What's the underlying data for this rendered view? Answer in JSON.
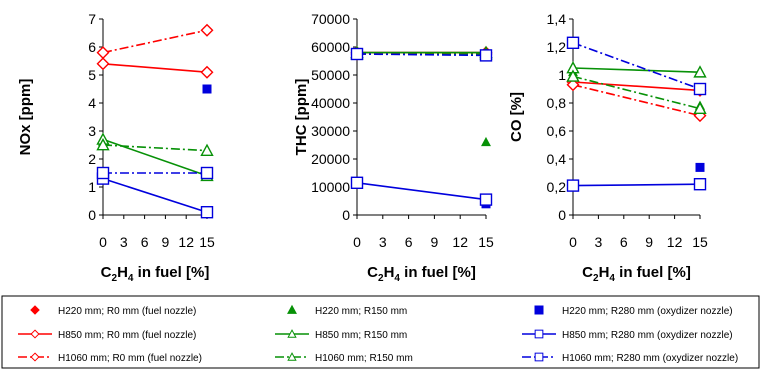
{
  "colors": {
    "red": "#ff0000",
    "green": "#079107",
    "blue": "#0000dd"
  },
  "chart_data": [
    {
      "type": "scatter",
      "title": "",
      "xlabel": {
        "pre": "C",
        "sub1": "2",
        "mid": "H",
        "sub2": "4",
        "post": " in fuel [%]"
      },
      "ylabel": "NOx [ppm]",
      "xlim": [
        0,
        15
      ],
      "ylim": [
        0,
        7
      ],
      "xticks": [
        "0",
        "3",
        "6",
        "9",
        "12",
        "15"
      ],
      "yticks": [
        "0",
        "1",
        "2",
        "3",
        "4",
        "5",
        "6",
        "7"
      ],
      "series": [
        {
          "name": "H220 mm; R0 mm (fuel nozzle)",
          "x": [
            0,
            15
          ],
          "y": [
            5.8,
            5.1
          ]
        },
        {
          "name": "H220 mm; R150 mm",
          "x": [
            0,
            15
          ],
          "y": [
            2.6,
            1.4
          ]
        },
        {
          "name": "H220 mm; R280 mm (oxydizer nozzle)",
          "x": [
            0,
            15
          ],
          "y": [
            1.5,
            4.5
          ]
        },
        {
          "name": "H850 mm; R0 mm (fuel nozzle)",
          "x": [
            0,
            15
          ],
          "y": [
            5.4,
            5.1
          ]
        },
        {
          "name": "H850 mm; R150 mm",
          "x": [
            0,
            15
          ],
          "y": [
            2.7,
            1.4
          ]
        },
        {
          "name": "H850 mm; R280 mm (oxydizer nozzle)",
          "x": [
            0,
            15
          ],
          "y": [
            1.3,
            0.1
          ]
        },
        {
          "name": "H1060 mm; R0 mm (fuel nozzle)",
          "x": [
            0,
            15
          ],
          "y": [
            5.8,
            6.6
          ]
        },
        {
          "name": "H1060 mm; R150 mm",
          "x": [
            0,
            15
          ],
          "y": [
            2.5,
            2.3
          ]
        },
        {
          "name": "H1060 mm; R280 mm (oxydizer nozzle)",
          "x": [
            0,
            15
          ],
          "y": [
            1.5,
            1.5
          ]
        }
      ]
    },
    {
      "type": "scatter",
      "title": "",
      "xlabel": {
        "pre": "C",
        "sub1": "2",
        "mid": "H",
        "sub2": "4",
        "post": " in fuel [%]"
      },
      "ylabel": "THC [ppm]",
      "xlim": [
        0,
        15
      ],
      "ylim": [
        0,
        70000
      ],
      "xticks": [
        "0",
        "3",
        "6",
        "9",
        "12",
        "15"
      ],
      "yticks": [
        "0",
        "10000",
        "20000",
        "30000",
        "40000",
        "50000",
        "60000",
        "70000"
      ],
      "series": [
        {
          "name": "H220 mm; R0 mm (fuel nozzle)",
          "x": [
            0,
            15
          ],
          "y": [
            57500,
            57500
          ]
        },
        {
          "name": "H220 mm; R150 mm",
          "x": [
            0,
            15
          ],
          "y": [
            57000,
            26000
          ]
        },
        {
          "name": "H220 mm; R280 mm (oxydizer nozzle)",
          "x": [
            0,
            15
          ],
          "y": [
            57500,
            4000
          ]
        },
        {
          "name": "H850 mm; R0 mm (fuel nozzle)",
          "x": [
            0,
            15
          ],
          "y": [
            58000,
            58000
          ]
        },
        {
          "name": "H850 mm; R150 mm",
          "x": [
            0,
            15
          ],
          "y": [
            58000,
            58000
          ]
        },
        {
          "name": "H850 mm; R280 mm (oxydizer nozzle)",
          "x": [
            0,
            15
          ],
          "y": [
            11500,
            5500
          ]
        },
        {
          "name": "H1060 mm; R0 mm (fuel nozzle)",
          "x": [
            0,
            15
          ],
          "y": [
            57500,
            57500
          ]
        },
        {
          "name": "H1060 mm; R150 mm",
          "x": [
            0,
            15
          ],
          "y": [
            57500,
            57500
          ]
        },
        {
          "name": "H1060 mm; R280 mm (oxydizer nozzle)",
          "x": [
            0,
            15
          ],
          "y": [
            57500,
            57000
          ]
        }
      ]
    },
    {
      "type": "scatter",
      "title": "",
      "xlabel": {
        "pre": "C",
        "sub1": "2",
        "mid": "H",
        "sub2": "4",
        "post": " in fuel [%]"
      },
      "ylabel": "CO [%]",
      "xlim": [
        0,
        15
      ],
      "ylim": [
        0,
        1.4
      ],
      "xticks": [
        "0",
        "3",
        "6",
        "9",
        "12",
        "15"
      ],
      "yticks": [
        "0",
        "0,2",
        "0,4",
        "0,6",
        "0,8",
        "1",
        "1,2",
        "1,4"
      ],
      "series": [
        {
          "name": "H220 mm; R0 mm (fuel nozzle)",
          "x": [
            0,
            15
          ],
          "y": [
            0.93,
            0.75
          ]
        },
        {
          "name": "H220 mm; R150 mm",
          "x": [
            0,
            15
          ],
          "y": [
            1.02,
            0.78
          ]
        },
        {
          "name": "H220 mm; R280 mm (oxydizer nozzle)",
          "x": [
            0,
            15
          ],
          "y": [
            0.21,
            0.34
          ]
        },
        {
          "name": "H850 mm; R0 mm (fuel nozzle)",
          "x": [
            0,
            15
          ],
          "y": [
            0.95,
            0.89
          ]
        },
        {
          "name": "H850 mm; R150 mm",
          "x": [
            0,
            15
          ],
          "y": [
            1.05,
            1.02
          ]
        },
        {
          "name": "H850 mm; R280 mm (oxydizer nozzle)",
          "x": [
            0,
            15
          ],
          "y": [
            0.21,
            0.22
          ]
        },
        {
          "name": "H1060 mm; R0 mm (fuel nozzle)",
          "x": [
            0,
            15
          ],
          "y": [
            0.93,
            0.71
          ]
        },
        {
          "name": "H1060 mm; R150 mm",
          "x": [
            0,
            15
          ],
          "y": [
            0.99,
            0.76
          ]
        },
        {
          "name": "H1060 mm; R280 mm (oxydizer nozzle)",
          "x": [
            0,
            15
          ],
          "y": [
            1.23,
            0.9
          ]
        }
      ]
    }
  ],
  "legend": {
    "placement": "bottom",
    "entries": [
      {
        "label": "H220 mm; R0 mm (fuel nozzle)",
        "color": "red",
        "marker": "diamond-filled",
        "line": "none"
      },
      {
        "label": "H220 mm; R150 mm",
        "color": "green",
        "marker": "triangle-filled",
        "line": "none"
      },
      {
        "label": "H220 mm; R280 mm (oxydizer nozzle)",
        "color": "blue",
        "marker": "square-filled",
        "line": "none"
      },
      {
        "label": "H850 mm; R0 mm (fuel nozzle)",
        "color": "red",
        "marker": "diamond-open",
        "line": "solid"
      },
      {
        "label": "H850 mm; R150 mm",
        "color": "green",
        "marker": "triangle-open",
        "line": "solid"
      },
      {
        "label": "H850 mm; R280 mm (oxydizer nozzle)",
        "color": "blue",
        "marker": "square-open",
        "line": "solid"
      },
      {
        "label": "H1060 mm; R0 mm (fuel nozzle)",
        "color": "red",
        "marker": "diamond-open",
        "line": "dashdot"
      },
      {
        "label": "H1060 mm; R150 mm",
        "color": "green",
        "marker": "triangle-open",
        "line": "dashdot"
      },
      {
        "label": "H1060 mm; R280 mm (oxydizer nozzle)",
        "color": "blue",
        "marker": "square-open",
        "line": "dashdot"
      }
    ]
  }
}
